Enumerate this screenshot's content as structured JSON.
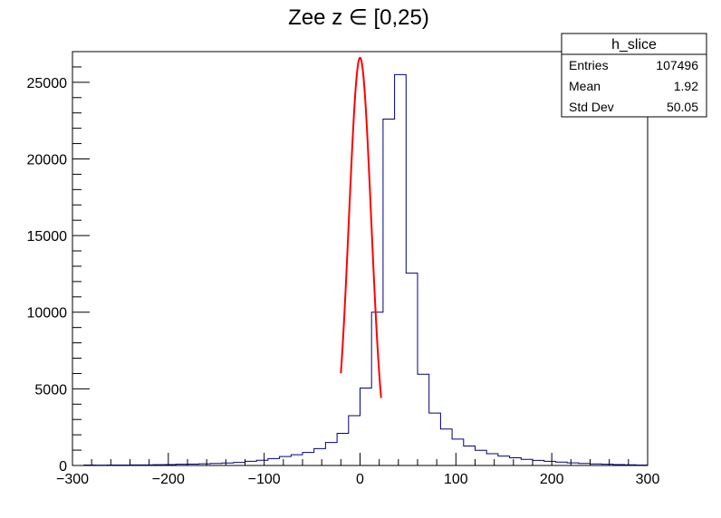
{
  "chart_data": {
    "type": "bar",
    "title": "Zee z ∈ [0,25)",
    "xlabel": "",
    "ylabel": "",
    "xlim": [
      -300,
      300
    ],
    "ylim": [
      0,
      27000
    ],
    "x_ticks": [
      -300,
      -200,
      -100,
      0,
      100,
      200,
      300
    ],
    "x_tick_labels": [
      "−300",
      "−200",
      "−100",
      "0",
      "100",
      "200",
      "300"
    ],
    "y_ticks": [
      0,
      5000,
      10000,
      15000,
      20000,
      25000
    ],
    "y_tick_labels": [
      "0",
      "5000",
      "10000",
      "15000",
      "20000",
      "25000"
    ],
    "grid": false,
    "histogram": {
      "bin_width": 12,
      "bin_edges_start": -300,
      "color": "#000080",
      "values": [
        0,
        30,
        20,
        30,
        30,
        40,
        40,
        50,
        60,
        80,
        90,
        110,
        130,
        160,
        200,
        270,
        340,
        450,
        580,
        700,
        850,
        1100,
        1500,
        2100,
        3250,
        5050,
        10000,
        22600,
        25500,
        12550,
        5950,
        3420,
        2380,
        1720,
        1270,
        990,
        770,
        610,
        500,
        400,
        330,
        270,
        220,
        170,
        130,
        100,
        80,
        60,
        45,
        30
      ]
    },
    "fit": {
      "color": "#ff0000",
      "name": "gaus",
      "amplitude": 26600,
      "mean": 0,
      "sigma": 11.6,
      "range": [
        -20,
        22
      ]
    },
    "stats_box": {
      "name": "h_slice",
      "rows": [
        {
          "label": "Entries",
          "value": "107496"
        },
        {
          "label": "Mean",
          "value": "1.92"
        },
        {
          "label": "Std Dev",
          "value": "50.05"
        }
      ]
    }
  }
}
